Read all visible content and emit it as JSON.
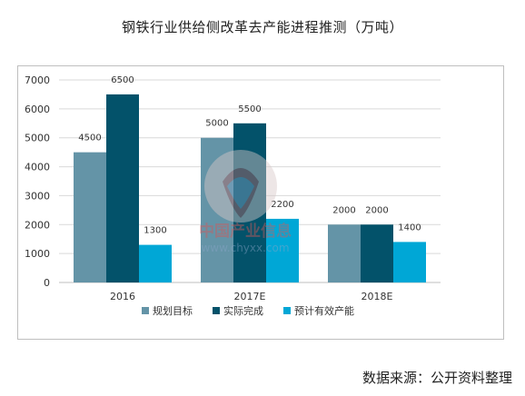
{
  "title": "钢铁行业供给侧改革去产能进程推测（万吨）",
  "source": "数据来源：公开资料整理",
  "watermark": {
    "brand": "中国产业信息",
    "url": "www.chyxx.com"
  },
  "colors": {
    "series1": "#6494a7",
    "series2": "#03526a",
    "series3": "#00a7d6",
    "grid": "#d9d9d9"
  },
  "chart_data": {
    "type": "bar",
    "title": "钢铁行业供给侧改革去产能进程推测（万吨）",
    "categories": [
      "2016",
      "2017E",
      "2018E"
    ],
    "series": [
      {
        "name": "规划目标",
        "values": [
          4500,
          5000,
          2000
        ]
      },
      {
        "name": "实际完成",
        "values": [
          6500,
          5500,
          2000
        ]
      },
      {
        "name": "预计有效产能",
        "values": [
          1300,
          2200,
          1400
        ]
      }
    ],
    "ylim": [
      0,
      7000
    ],
    "yticks": [
      0,
      1000,
      2000,
      3000,
      4000,
      5000,
      6000,
      7000
    ],
    "grid": true,
    "legend": "bottom",
    "data_labels": true
  }
}
